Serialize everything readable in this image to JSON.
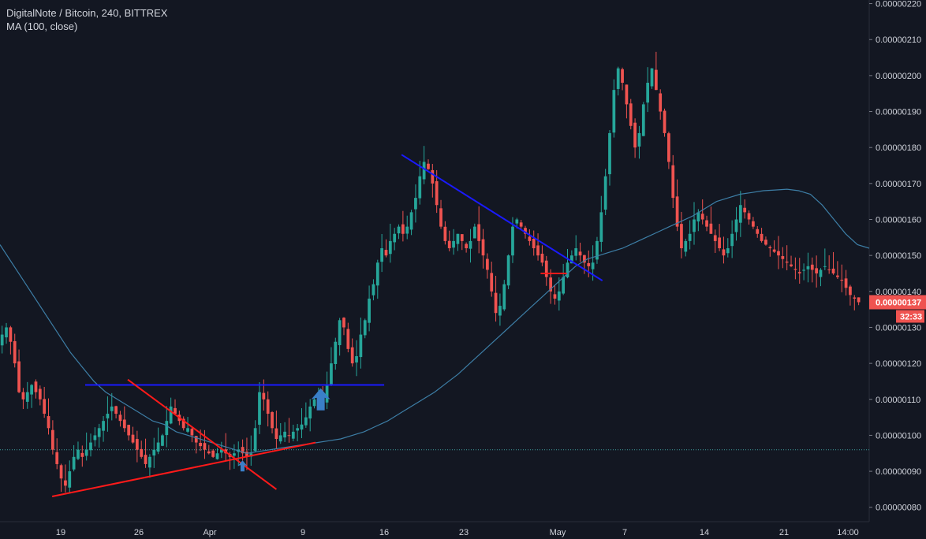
{
  "header": {
    "title": "DigitalNote / Bitcoin, 240, BITTREX",
    "indicator": "MA (100, close)"
  },
  "colors": {
    "background": "#131722",
    "up": "#26a69a",
    "down": "#ef5350",
    "ma": "#3d7ea6",
    "trend_red": "#ff1a1a",
    "trend_blue": "#1a1aff",
    "arrow": "#3a7fc8",
    "price_line": "#3fa0a0",
    "axis_text": "#d1d4dc"
  },
  "chart_data": {
    "type": "candlestick",
    "yaxis": {
      "range": [
        7.6e-07,
        2.21e-06
      ],
      "ticks": [
        "0.00000080",
        "0.00000090",
        "0.00000100",
        "0.00000110",
        "0.00000120",
        "0.00000130",
        "0.00000140",
        "0.00000150",
        "0.00000160",
        "0.00000170",
        "0.00000180",
        "0.00000190",
        "0.00000200",
        "0.00000210",
        "0.00000220"
      ]
    },
    "xaxis": {
      "ticks": [
        "19",
        "26",
        "Apr",
        "9",
        "16",
        "23",
        "May",
        "7",
        "14",
        "21",
        "14:00"
      ]
    },
    "current_price": "0.00000137",
    "countdown": "32:33",
    "close_series": [
      1.28,
      1.3,
      1.26,
      1.2,
      1.12,
      1.1,
      1.12,
      1.14,
      1.12,
      1.1,
      1.06,
      1.02,
      0.96,
      0.92,
      0.88,
      0.86,
      0.9,
      0.94,
      0.96,
      0.94,
      0.96,
      0.98,
      1.0,
      1.02,
      1.04,
      1.06,
      1.08,
      1.06,
      1.04,
      1.02,
      1.0,
      0.98,
      0.96,
      0.94,
      0.92,
      0.94,
      0.96,
      0.98,
      1.0,
      1.04,
      1.08,
      1.06,
      1.04,
      1.02,
      1.02,
      1.0,
      0.98,
      0.97,
      0.96,
      0.95,
      0.94,
      0.95,
      0.96,
      0.95,
      0.94,
      0.95,
      0.96,
      0.95,
      0.94,
      0.95,
      1.02,
      1.12,
      1.1,
      1.06,
      1.02,
      0.99,
      1.0,
      1.01,
      1.0,
      1.01,
      1.02,
      1.03,
      1.05,
      1.08,
      1.1,
      1.12,
      1.1,
      1.14,
      1.2,
      1.26,
      1.32,
      1.3,
      1.24,
      1.2,
      1.22,
      1.28,
      1.32,
      1.38,
      1.42,
      1.48,
      1.52,
      1.5,
      1.54,
      1.56,
      1.58,
      1.56,
      1.58,
      1.62,
      1.66,
      1.72,
      1.76,
      1.74,
      1.7,
      1.64,
      1.58,
      1.54,
      1.52,
      1.54,
      1.56,
      1.54,
      1.52,
      1.54,
      1.58,
      1.54,
      1.5,
      1.46,
      1.4,
      1.34,
      1.36,
      1.42,
      1.5,
      1.58,
      1.6,
      1.58,
      1.56,
      1.54,
      1.52,
      1.5,
      1.48,
      1.44,
      1.4,
      1.38,
      1.4,
      1.44,
      1.48,
      1.5,
      1.52,
      1.5,
      1.48,
      1.47,
      1.48,
      1.54,
      1.62,
      1.72,
      1.84,
      1.96,
      2.02,
      1.98,
      1.92,
      1.86,
      1.8,
      1.84,
      1.92,
      1.98,
      2.02,
      1.96,
      1.9,
      1.84,
      1.76,
      1.66,
      1.58,
      1.52,
      1.54,
      1.56,
      1.6,
      1.62,
      1.6,
      1.58,
      1.56,
      1.54,
      1.52,
      1.5,
      1.52,
      1.56,
      1.6,
      1.64,
      1.62,
      1.6,
      1.58,
      1.56,
      1.54,
      1.53,
      1.52,
      1.51,
      1.5,
      1.49,
      1.48,
      1.47,
      1.46,
      1.45,
      1.46,
      1.47,
      1.46,
      1.45,
      1.46,
      1.47,
      1.46,
      1.45,
      1.44,
      1.43,
      1.41,
      1.39,
      1.38,
      1.37
    ],
    "ma_series": [
      1.53,
      1.48,
      1.43,
      1.38,
      1.33,
      1.28,
      1.23,
      1.19,
      1.15,
      1.12,
      1.1,
      1.08,
      1.06,
      1.04,
      1.03,
      1.01,
      1.0,
      0.99,
      0.98,
      0.97,
      0.96,
      0.95,
      0.955,
      0.96,
      0.965,
      0.97,
      0.975,
      0.98,
      0.985,
      0.99,
      1.0,
      1.01,
      1.025,
      1.04,
      1.06,
      1.08,
      1.1,
      1.12,
      1.145,
      1.17,
      1.2,
      1.23,
      1.26,
      1.29,
      1.32,
      1.35,
      1.38,
      1.41,
      1.44,
      1.47,
      1.49,
      1.5,
      1.51,
      1.52,
      1.535,
      1.55,
      1.565,
      1.58,
      1.595,
      1.61,
      1.63,
      1.65,
      1.66,
      1.67,
      1.675,
      1.68,
      1.682,
      1.684,
      1.68,
      1.67,
      1.64,
      1.6,
      1.56,
      1.53,
      1.52
    ],
    "annotations": {
      "hline_blue": {
        "price": 1.14,
        "range_frac": [
          0.098,
          0.442
        ]
      },
      "red_triangle": [
        [
          0.06,
          0.83
        ],
        [
          0.363,
          0.98
        ],
        [
          0.147,
          1.155
        ],
        [
          0.318,
          0.85
        ]
      ],
      "blue_downtrend": [
        [
          0.462,
          1.78
        ],
        [
          0.693,
          1.43
        ]
      ],
      "red_support_short": [
        [
          0.622,
          1.45
        ],
        [
          0.652,
          1.45
        ]
      ],
      "dashed_price": 0.96,
      "arrows": [
        {
          "x_frac": 0.369,
          "price": 1.1,
          "size": "large"
        },
        {
          "x_frac": 0.279,
          "price": 0.915,
          "size": "small"
        }
      ]
    }
  }
}
